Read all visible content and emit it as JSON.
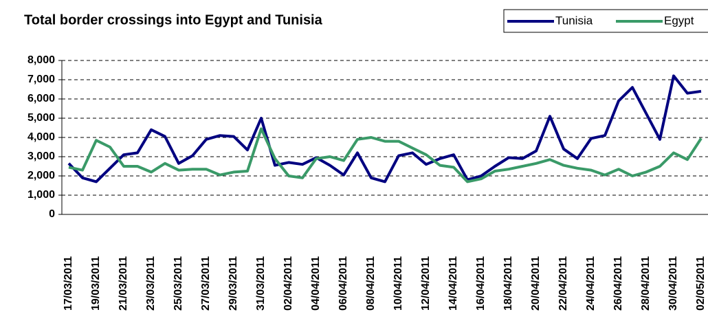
{
  "chart_data": {
    "type": "line",
    "title": "Total border crossings into Egypt and Tunisia",
    "categories": [
      "17/03/2011",
      null,
      "19/03/2011",
      null,
      "21/03/2011",
      null,
      "23/03/2011",
      null,
      "25/03/2011",
      null,
      "27/03/2011",
      null,
      "29/03/2011",
      null,
      "31/03/2011",
      null,
      "02/04/2011",
      null,
      "04/04/2011",
      null,
      "06/04/2011",
      null,
      "08/04/2011",
      null,
      "10/04/2011",
      null,
      "12/04/2011",
      null,
      "14/04/2011",
      null,
      "16/04/2011",
      null,
      "18/04/2011",
      null,
      "20/04/2011",
      null,
      "22/04/2011",
      null,
      "24/04/2011",
      null,
      "26/04/2011",
      null,
      "28/04/2011",
      null,
      "30/04/2011",
      null,
      "02/05/2011"
    ],
    "series": [
      {
        "name": "Tunisia",
        "color": "#000080",
        "values": [
          2650,
          1900,
          1700,
          2400,
          3100,
          3200,
          4400,
          4050,
          2650,
          3050,
          3900,
          4100,
          4050,
          3350,
          5000,
          2550,
          2700,
          2600,
          2950,
          2550,
          2050,
          3200,
          1900,
          1700,
          3050,
          3200,
          2600,
          2900,
          3100,
          1800,
          2000,
          2500,
          2950,
          2900,
          3300,
          5100,
          3400,
          2900,
          3950,
          4100,
          5900,
          6600,
          5250,
          3900,
          7200,
          6300,
          6400
        ]
      },
      {
        "name": "Egypt",
        "color": "#3a9a68",
        "values": [
          2450,
          2300,
          3850,
          3500,
          2500,
          2500,
          2200,
          2650,
          2300,
          2350,
          2350,
          2050,
          2200,
          2250,
          4450,
          2900,
          2000,
          1900,
          2900,
          3000,
          2800,
          3900,
          4000,
          3800,
          3800,
          3450,
          3100,
          2550,
          2450,
          1700,
          1850,
          2250,
          2350,
          2500,
          2650,
          2850,
          2550,
          2400,
          2300,
          2050,
          2350,
          2000,
          2200,
          2500,
          3200,
          2850,
          3950
        ]
      }
    ],
    "ylim": [
      0,
      8000
    ],
    "yticks": [
      0,
      {
        "value": 1000,
        "label": "1,000"
      },
      {
        "value": 2000,
        "label": "2,000"
      },
      {
        "value": 3000,
        "label": "3,000"
      },
      {
        "value": 4000,
        "label": "4,000"
      },
      {
        "value": 5000,
        "label": "5,000"
      },
      {
        "value": 6000,
        "label": "6,000"
      },
      {
        "value": 7000,
        "label": "7,000"
      },
      {
        "value": 8000,
        "label": "8,000"
      }
    ],
    "grid": true
  }
}
